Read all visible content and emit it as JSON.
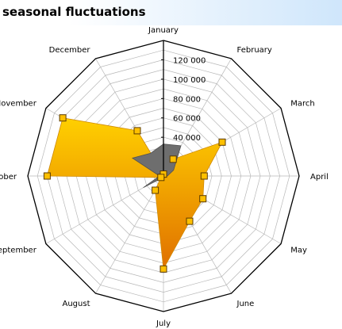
{
  "title": "seasonal fluctuations",
  "colors": {
    "series_a_fill_top": "#ffd000",
    "series_a_fill_bottom": "#e07000",
    "series_b_fill": "#6e6e6e",
    "marker_fill": "#ffc000",
    "marker_stroke": "#5a3a00",
    "grid": "#b8b8b8",
    "outer": "#000000"
  },
  "chart_data": {
    "type": "radar",
    "title": "seasonal fluctuations",
    "categories": [
      "January",
      "February",
      "March",
      "April",
      "May",
      "June",
      "July",
      "August",
      "September",
      "October",
      "November",
      "December"
    ],
    "rlim": [
      0,
      140000
    ],
    "tick_values": [
      40000,
      60000,
      80000,
      100000,
      120000
    ],
    "tick_labels": [
      "40 000",
      "60 000",
      "80 000",
      "100 000",
      "120 000"
    ],
    "grid": true,
    "series": [
      {
        "values": [
          2000,
          20000,
          70000,
          42000,
          47000,
          54000,
          96000,
          17000,
          3000,
          120000,
          120000,
          54000
        ],
        "markers": true
      },
      {
        "values": [
          33000,
          36000,
          12000,
          4000,
          1000,
          2000,
          1000,
          2000,
          24000,
          4000,
          37000,
          27000
        ],
        "markers": false
      }
    ]
  }
}
